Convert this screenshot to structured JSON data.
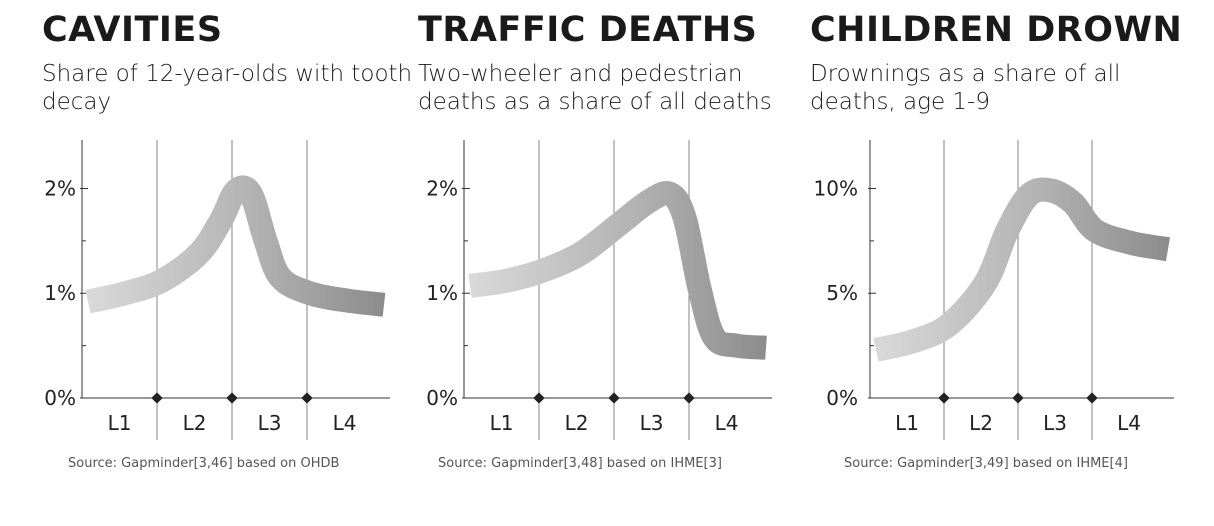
{
  "chart_data": [
    {
      "type": "line",
      "title": "CAVITIES",
      "subtitle": "Share of 12-year-olds with tooth decay",
      "source": "Source: Gapminder[3,46] based on OHDB",
      "categories": [
        "L1",
        "L2",
        "L3",
        "L4"
      ],
      "ylim": [
        0,
        2.1
      ],
      "yticks": [
        {
          "value": 0,
          "label": "0%"
        },
        {
          "value": 1,
          "label": "1%"
        },
        {
          "value": 2,
          "label": "2%"
        }
      ],
      "minor_yticks": [
        0.5,
        1.5
      ],
      "grid": "vertical level separators",
      "x": [
        0,
        0.5,
        1.0,
        1.5,
        1.8,
        2.0,
        2.2,
        2.4,
        2.6,
        3.0,
        3.5,
        4.0
      ],
      "y": [
        0.92,
        1.0,
        1.12,
        1.38,
        1.7,
        1.98,
        1.95,
        1.5,
        1.15,
        1.0,
        0.93,
        0.89
      ]
    },
    {
      "type": "line",
      "title": "TRAFFIC DEATHS",
      "subtitle": "Two-wheeler and pedestrian deaths as a share of all deaths",
      "source": "Source: Gapminder[3,48] based on IHME[3]",
      "categories": [
        "L1",
        "L2",
        "L3",
        "L4"
      ],
      "ylim": [
        0,
        2.1
      ],
      "yticks": [
        {
          "value": 0,
          "label": "0%"
        },
        {
          "value": 1,
          "label": "1%"
        },
        {
          "value": 2,
          "label": "2%"
        }
      ],
      "minor_yticks": [
        0.5,
        1.5
      ],
      "grid": "vertical level separators",
      "x": [
        0,
        0.5,
        1.0,
        1.5,
        2.0,
        2.4,
        2.7,
        2.9,
        3.1,
        3.3,
        3.6,
        4.0
      ],
      "y": [
        1.07,
        1.12,
        1.22,
        1.38,
        1.65,
        1.87,
        1.95,
        1.72,
        1.05,
        0.58,
        0.5,
        0.48
      ]
    },
    {
      "type": "line",
      "title": "CHILDREN DROWN",
      "subtitle": "Drownings as a share of all deaths, age 1-9",
      "source": "Source: Gapminder[3,49] based on IHME[4]",
      "categories": [
        "L1",
        "L2",
        "L3",
        "L4"
      ],
      "ylim": [
        0,
        10.5
      ],
      "yticks": [
        {
          "value": 0,
          "label": "0%"
        },
        {
          "value": 5,
          "label": "5%"
        },
        {
          "value": 10,
          "label": "10%"
        }
      ],
      "minor_yticks": [
        2.5,
        7.5
      ],
      "grid": "vertical level separators",
      "x": [
        0,
        0.5,
        1.0,
        1.5,
        1.8,
        2.1,
        2.4,
        2.7,
        3.0,
        3.5,
        4.0
      ],
      "y": [
        2.3,
        2.7,
        3.5,
        5.5,
        8.0,
        9.7,
        9.9,
        9.3,
        8.0,
        7.4,
        7.1
      ]
    }
  ]
}
